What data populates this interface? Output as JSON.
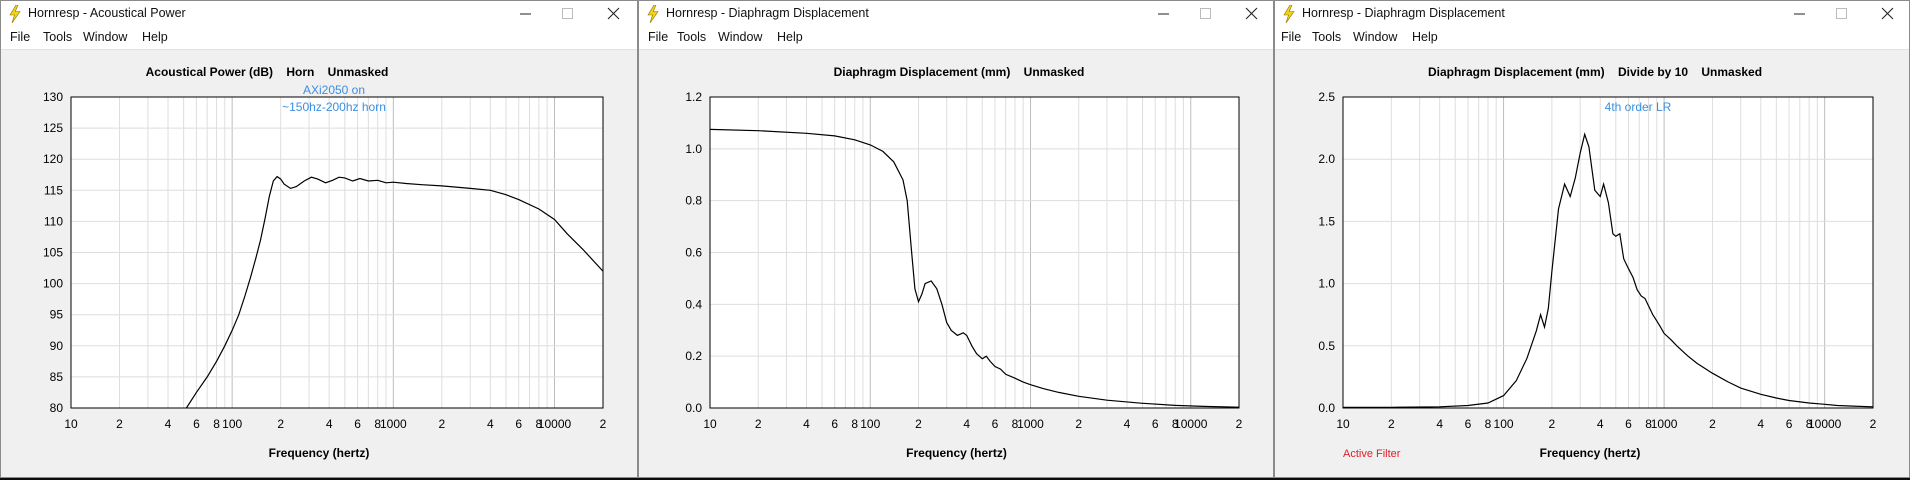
{
  "menu": [
    "File",
    "Tools",
    "Window",
    "Help"
  ],
  "accent": {
    "note": "#3d8fe0",
    "active_filter": "#e0202a",
    "grid": "#c8c8c8",
    "curve": "#000000"
  },
  "icons": {
    "app": "lightning-bolt-icon",
    "minimize": "minimize-icon",
    "maximize": "maximize-icon",
    "close": "close-icon"
  },
  "windows": [
    {
      "title": "Hornresp - Acoustical Power",
      "chart_title": "Acoustical Power (dB)    Horn    Unmasked",
      "note_lines": [
        "AXi2050 on",
        "~150hz-200hz horn"
      ],
      "xlabel": "Frequency (hertz)",
      "footer": "",
      "chart_data": {
        "type": "line",
        "title": "Acoustical Power (dB)    Horn    Unmasked",
        "xlabel": "Frequency (hertz)",
        "ylabel": "",
        "xscale": "log",
        "xlim": [
          10,
          20000
        ],
        "ylim": [
          80,
          130
        ],
        "grid": true,
        "yticks": [
          "130",
          "125",
          "120",
          "115",
          "110",
          "105",
          "100",
          "95",
          "90",
          "85",
          "80"
        ],
        "xtick_labels": [
          "10",
          "2",
          "4",
          "6",
          "8",
          "100",
          "2",
          "4",
          "6",
          "8",
          "1000",
          "2",
          "4",
          "6",
          "8",
          "10000",
          "2"
        ],
        "series": [
          {
            "x": [
              52,
              60,
              70,
              80,
              90,
              100,
              110,
              120,
              130,
              140,
              150,
              160,
              170,
              180,
              190,
              200,
              210,
              230,
              250,
              280,
              310,
              340,
              380,
              420,
              460,
              500,
              560,
              620,
              700,
              800,
              900,
              1000,
              1200,
              1500,
              2000,
              3000,
              4000,
              5000,
              6000,
              8000,
              10000,
              12000,
              15000,
              20000
            ],
            "y": [
              80,
              82.5,
              85,
              87.5,
              90,
              92.5,
              95,
              98,
              101,
              104,
              107,
              110.5,
              114,
              116.5,
              117.2,
              116.8,
              116,
              115.3,
              115.6,
              116.5,
              117.1,
              116.8,
              116.2,
              116.6,
              117.1,
              117,
              116.5,
              116.9,
              116.5,
              116.6,
              116.2,
              116.3,
              116.1,
              115.9,
              115.7,
              115.3,
              115,
              114.3,
              113.5,
              112,
              110.3,
              108,
              105.5,
              102
            ]
          }
        ]
      }
    },
    {
      "title": "Hornresp - Diaphragm Displacement",
      "chart_title": "Diaphragm Displacement (mm)    Unmasked",
      "note_lines": [],
      "xlabel": "Frequency (hertz)",
      "footer": "",
      "chart_data": {
        "type": "line",
        "title": "Diaphragm Displacement (mm)    Unmasked",
        "xlabel": "Frequency (hertz)",
        "ylabel": "",
        "xscale": "log",
        "xlim": [
          10,
          20000
        ],
        "ylim": [
          0,
          1.2
        ],
        "grid": true,
        "yticks": [
          "1.2",
          "1.0",
          "0.8",
          "0.6",
          "0.4",
          "0.2",
          "0.0"
        ],
        "xtick_labels": [
          "10",
          "2",
          "4",
          "6",
          "8",
          "100",
          "2",
          "4",
          "6",
          "8",
          "1000",
          "2",
          "4",
          "6",
          "8",
          "10000",
          "2"
        ],
        "series": [
          {
            "x": [
              10,
              20,
              40,
              60,
              80,
              100,
              120,
              140,
              160,
              170,
              180,
              190,
              200,
              210,
              220,
              240,
              260,
              280,
              300,
              320,
              350,
              380,
              400,
              430,
              460,
              500,
              530,
              560,
              600,
              650,
              700,
              800,
              900,
              1000,
              1200,
              1500,
              2000,
              3000,
              5000,
              8000,
              12000,
              20000
            ],
            "y": [
              1.075,
              1.07,
              1.06,
              1.05,
              1.035,
              1.015,
              0.99,
              0.95,
              0.88,
              0.8,
              0.62,
              0.46,
              0.41,
              0.44,
              0.48,
              0.49,
              0.46,
              0.4,
              0.33,
              0.3,
              0.28,
              0.29,
              0.28,
              0.24,
              0.21,
              0.19,
              0.2,
              0.18,
              0.16,
              0.15,
              0.13,
              0.115,
              0.1,
              0.09,
              0.075,
              0.06,
              0.045,
              0.03,
              0.018,
              0.01,
              0.006,
              0.003
            ]
          }
        ]
      }
    },
    {
      "title": "Hornresp - Diaphragm Displacement",
      "chart_title": "Diaphragm Displacement (mm)    Divide by 10    Unmasked",
      "note_lines": [
        "4th order LR"
      ],
      "xlabel": "Frequency (hertz)",
      "footer": "Active Filter",
      "chart_data": {
        "type": "line",
        "title": "Diaphragm Displacement (mm)    Divide by 10    Unmasked",
        "xlabel": "Frequency (hertz)",
        "ylabel": "",
        "xscale": "log",
        "xlim": [
          10,
          20000
        ],
        "ylim": [
          0,
          2.5
        ],
        "grid": true,
        "yticks": [
          "2.5",
          "2.0",
          "1.5",
          "1.0",
          "0.5",
          "0.0"
        ],
        "xtick_labels": [
          "10",
          "2",
          "4",
          "6",
          "8",
          "100",
          "2",
          "4",
          "6",
          "8",
          "1000",
          "2",
          "4",
          "6",
          "8",
          "10000",
          "2"
        ],
        "series": [
          {
            "x": [
              10,
              20,
              40,
              60,
              80,
              100,
              120,
              140,
              160,
              170,
              180,
              190,
              200,
              220,
              240,
              260,
              280,
              300,
              320,
              340,
              370,
              400,
              420,
              450,
              480,
              500,
              530,
              560,
              600,
              640,
              680,
              720,
              760,
              800,
              850,
              900,
              950,
              1000,
              1100,
              1200,
              1400,
              1600,
              2000,
              2500,
              3000,
              4000,
              5000,
              6000,
              8000,
              10000,
              12000,
              15000,
              20000
            ],
            "y": [
              0.005,
              0.006,
              0.01,
              0.02,
              0.04,
              0.1,
              0.22,
              0.4,
              0.62,
              0.75,
              0.65,
              0.8,
              1.1,
              1.6,
              1.8,
              1.7,
              1.85,
              2.05,
              2.2,
              2.1,
              1.75,
              1.7,
              1.8,
              1.65,
              1.4,
              1.38,
              1.4,
              1.2,
              1.12,
              1.05,
              0.95,
              0.9,
              0.88,
              0.82,
              0.75,
              0.7,
              0.65,
              0.6,
              0.55,
              0.5,
              0.42,
              0.36,
              0.28,
              0.21,
              0.16,
              0.11,
              0.08,
              0.06,
              0.04,
              0.03,
              0.02,
              0.015,
              0.01
            ]
          }
        ]
      }
    }
  ]
}
